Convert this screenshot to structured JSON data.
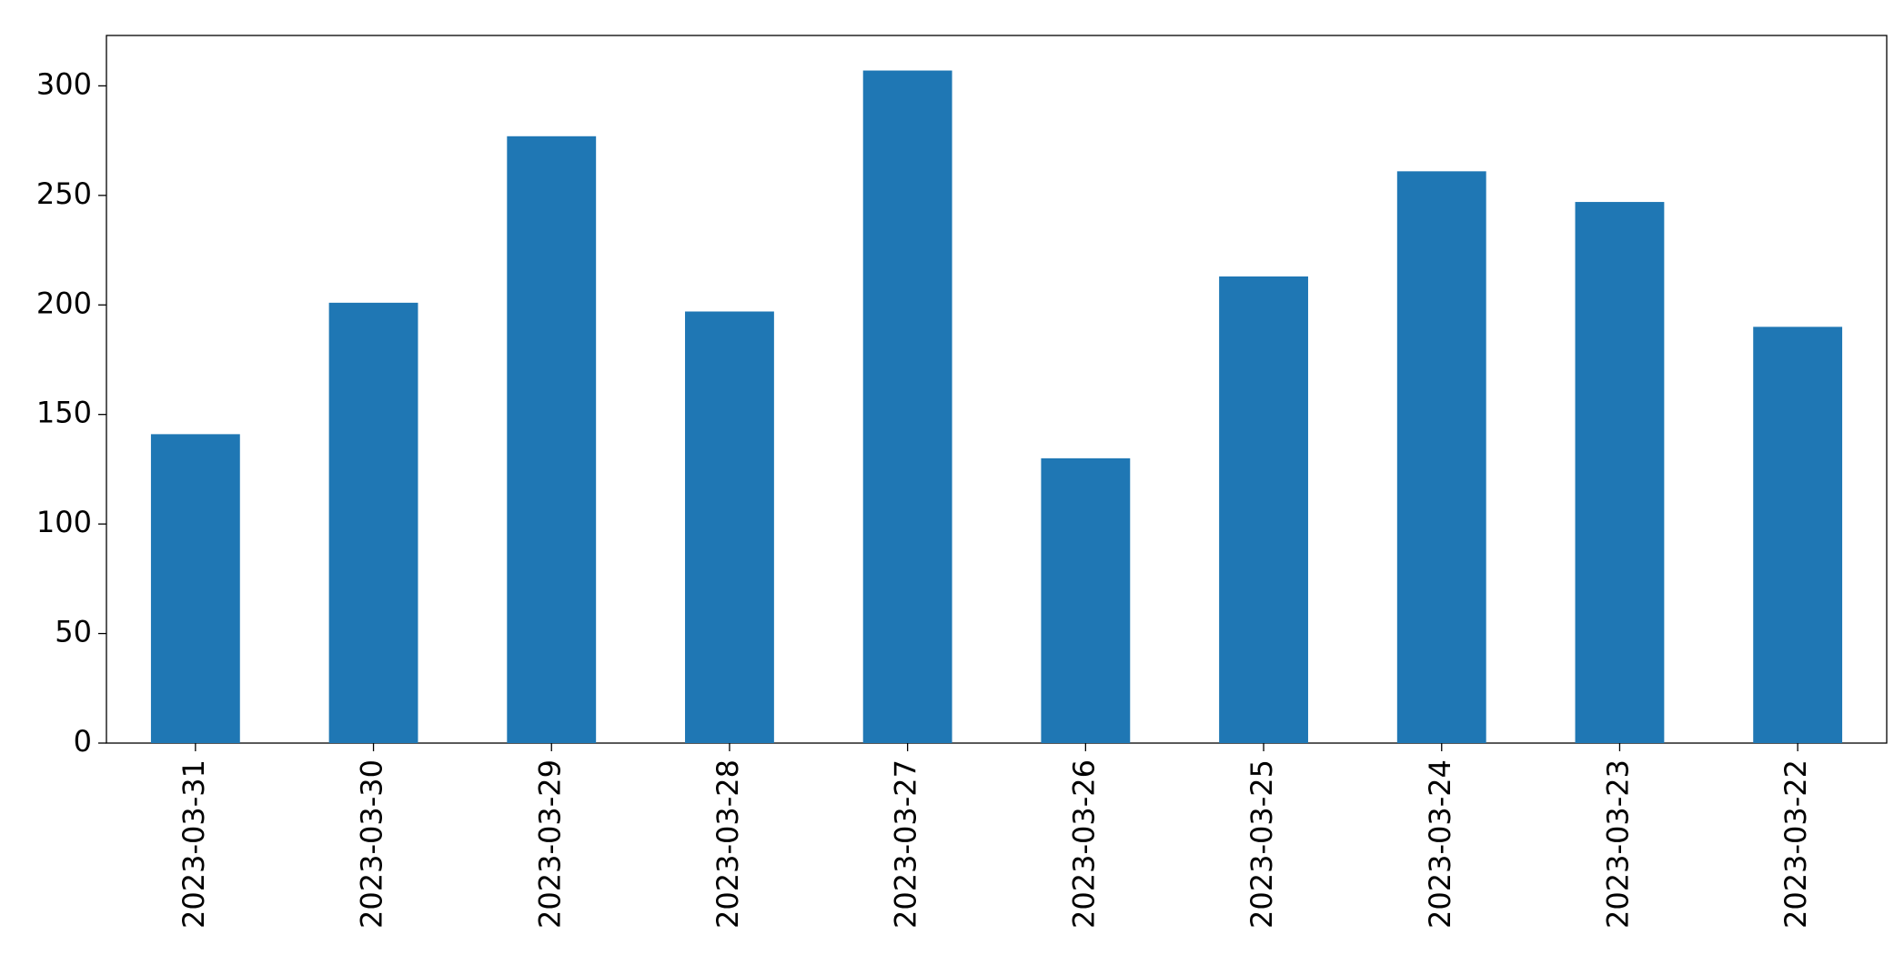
{
  "chart_data": {
    "type": "bar",
    "categories": [
      "2023-03-31",
      "2023-03-30",
      "2023-03-29",
      "2023-03-28",
      "2023-03-27",
      "2023-03-26",
      "2023-03-25",
      "2023-03-24",
      "2023-03-23",
      "2023-03-22"
    ],
    "values": [
      141,
      201,
      277,
      197,
      307,
      130,
      213,
      261,
      247,
      190
    ],
    "color": "#1f77b4",
    "ylim": [
      0,
      323
    ],
    "yticks": [
      0,
      50,
      100,
      150,
      200,
      250,
      300
    ],
    "grid": false
  }
}
